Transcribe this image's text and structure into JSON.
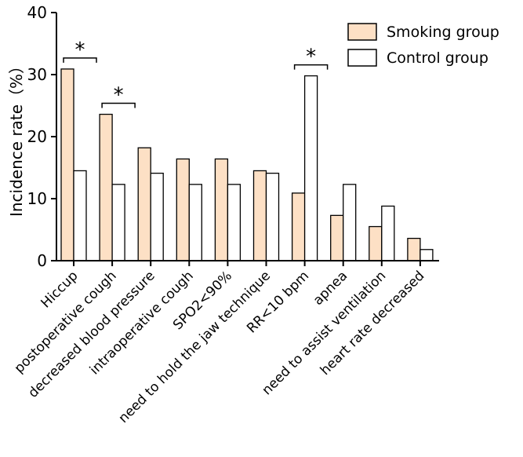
{
  "chart_data": {
    "type": "bar",
    "ylabel": "Incidence rate（%）",
    "ylim": [
      0,
      40
    ],
    "yticks": [
      0,
      10,
      20,
      30,
      40
    ],
    "categories": [
      "Hiccup",
      "postoperative cough",
      "decreased blood pressure",
      "intraoperative cough",
      "SPO2<90%",
      "need to hold the jaw technique",
      "RR<10 bpm",
      "apnea",
      "need to assist ventilation",
      "heart rate decreased"
    ],
    "series": [
      {
        "name": "Smoking group",
        "color": "#fde0c5",
        "values": [
          30.9,
          23.6,
          18.2,
          16.4,
          16.4,
          14.5,
          10.9,
          7.3,
          5.5,
          3.6
        ]
      },
      {
        "name": "Control group",
        "color": "#ffffff",
        "values": [
          14.5,
          12.3,
          14.1,
          12.3,
          12.3,
          14.1,
          29.8,
          12.3,
          8.8,
          1.8
        ]
      }
    ],
    "significance": [
      {
        "category_index": 0,
        "label": "*"
      },
      {
        "category_index": 1,
        "label": "*"
      },
      {
        "category_index": 6,
        "label": "*"
      }
    ],
    "legend_position": "top-right",
    "grid": false
  }
}
